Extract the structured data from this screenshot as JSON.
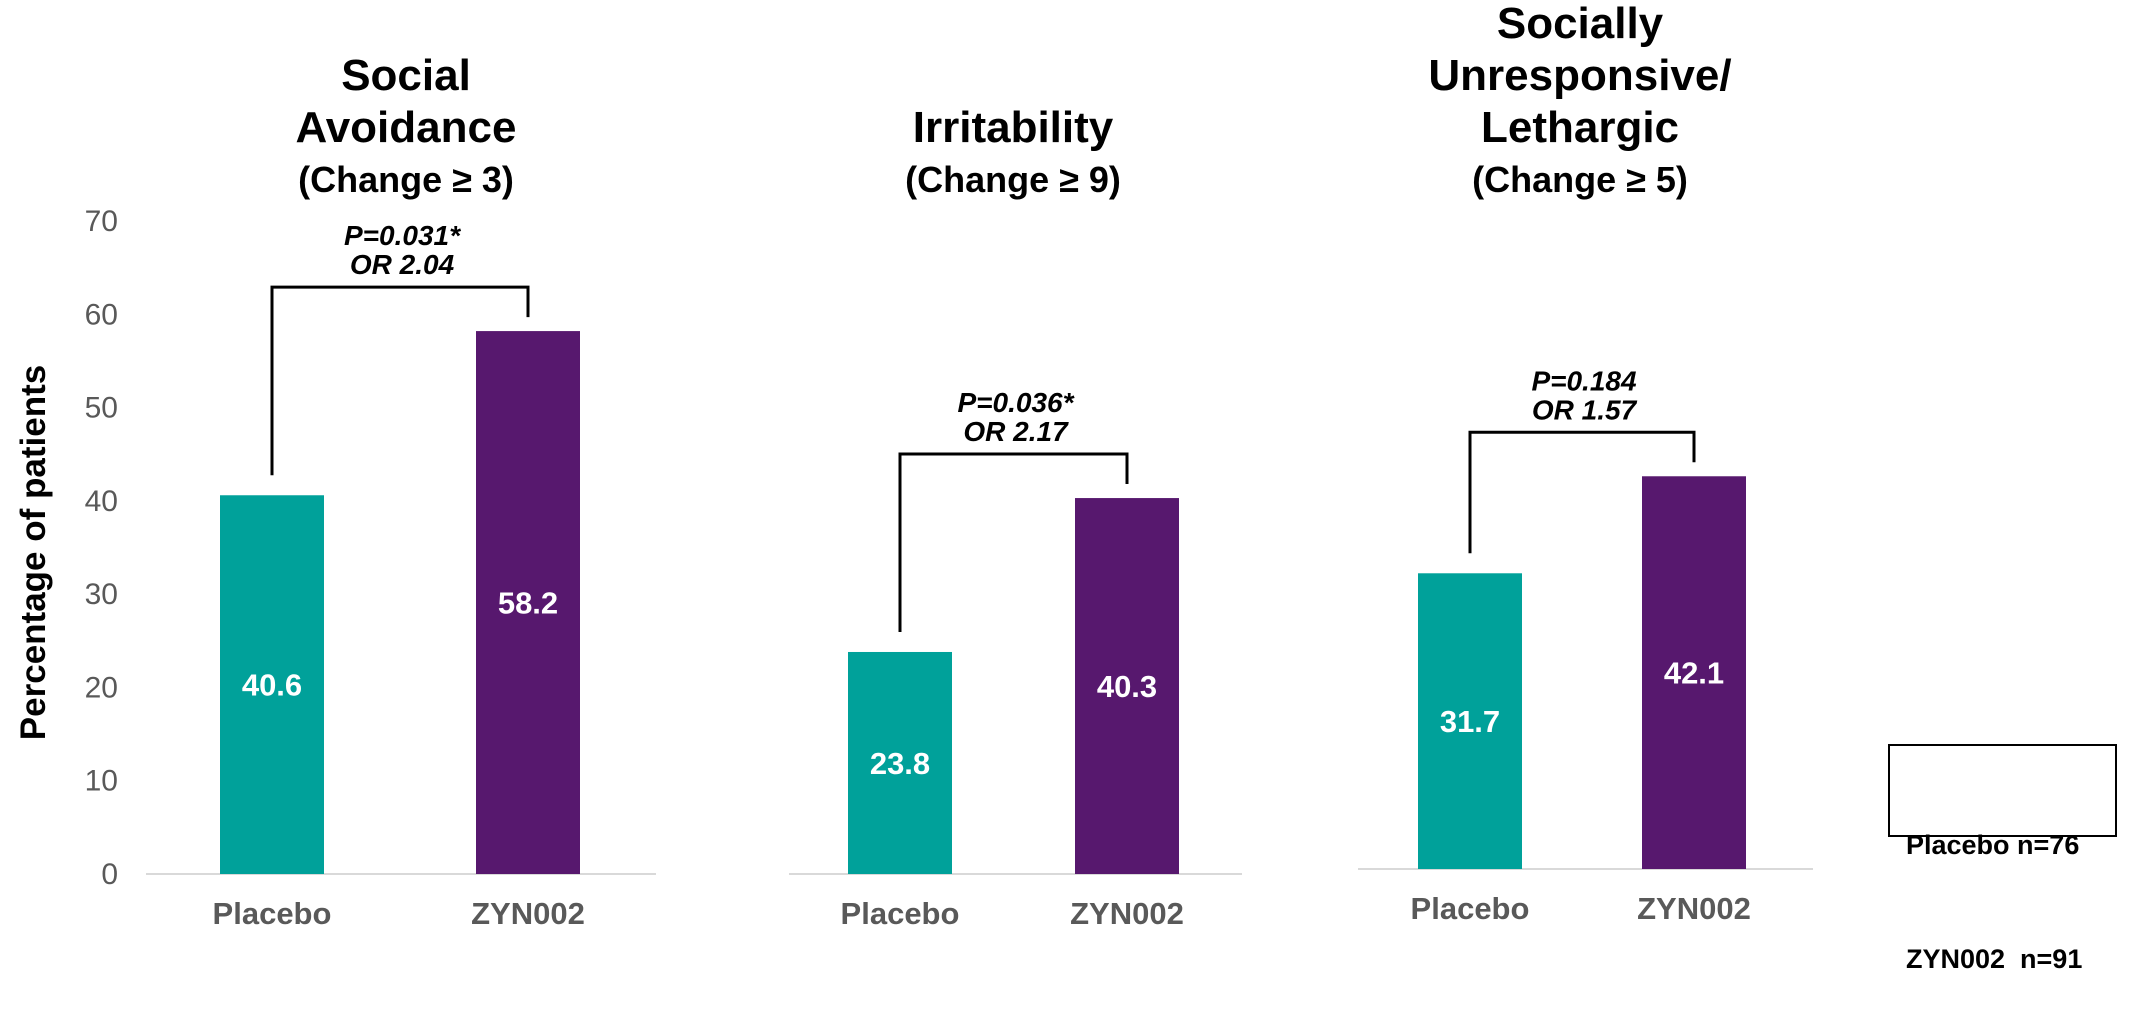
{
  "chart_data": {
    "type": "bar",
    "ylabel": "Percentage of patients",
    "ylim": [
      0,
      70
    ],
    "yticks": [
      "0",
      "10",
      "20",
      "30",
      "40",
      "50",
      "60",
      "70"
    ],
    "colors": {
      "Placebo": "#00A19A",
      "ZYN002": "#57186E"
    },
    "panels": [
      {
        "title_lines": [
          "Social",
          "Avoidance"
        ],
        "subtitle": "(Change ≥ 3)",
        "categories": [
          "Placebo",
          "ZYN002"
        ],
        "values": [
          40.6,
          58.2
        ],
        "value_labels": [
          "40.6",
          "58.2"
        ],
        "annotation": [
          "P=0.031*",
          "OR 2.04"
        ]
      },
      {
        "title_lines": [
          "Irritability"
        ],
        "subtitle": "(Change ≥ 9)",
        "categories": [
          "Placebo",
          "ZYN002"
        ],
        "values": [
          23.8,
          40.3
        ],
        "value_labels": [
          "23.8",
          "40.3"
        ],
        "annotation": [
          "P=0.036*",
          "OR 2.17"
        ]
      },
      {
        "title_lines": [
          "Socially",
          "Unresponsive/",
          "Lethargic"
        ],
        "subtitle": "(Change ≥ 5)",
        "categories": [
          "Placebo",
          "ZYN002"
        ],
        "values": [
          31.7,
          42.1
        ],
        "value_labels": [
          "31.7",
          "42.1"
        ],
        "annotation": [
          "P=0.184",
          "OR 1.57"
        ]
      }
    ],
    "legend_box": [
      "Placebo n=76",
      "ZYN002  n=91"
    ]
  }
}
